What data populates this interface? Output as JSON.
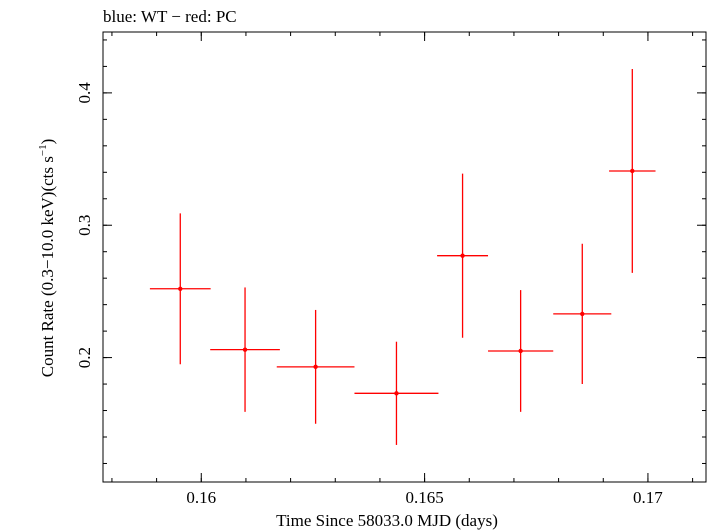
{
  "chart_data": {
    "type": "scatter",
    "title": "blue: WT − red: PC",
    "xlabel": "Time Since 58033.0 MJD (days)",
    "ylabel": "Count Rate (0.3−10.0 keV)(cts s",
    "ylabel_sup": "−1",
    "ylabel_close": ")",
    "xlim": [
      0.1578,
      0.1713
    ],
    "ylim": [
      0.106,
      0.446
    ],
    "x_ticks": [
      {
        "value": 0.16,
        "label": "0.16"
      },
      {
        "value": 0.165,
        "label": "0.165"
      },
      {
        "value": 0.17,
        "label": "0.17"
      }
    ],
    "y_ticks": [
      {
        "value": 0.2,
        "label": "0.2"
      },
      {
        "value": 0.3,
        "label": "0.3"
      },
      {
        "value": 0.4,
        "label": "0.4"
      }
    ],
    "x_minor_step": 0.001,
    "y_minor_step": 0.02,
    "grid": false,
    "colors": {
      "PC": "#ff0000",
      "axis": "#000000"
    },
    "series": [
      {
        "name": "PC",
        "color": "#ff0000",
        "points": [
          {
            "x": 0.15953,
            "xerr": 0.00068,
            "y": 0.252,
            "yerr": 0.057
          },
          {
            "x": 0.16098,
            "xerr": 0.00078,
            "y": 0.206,
            "yerr": 0.047
          },
          {
            "x": 0.16256,
            "xerr": 0.00087,
            "y": 0.193,
            "yerr": 0.043
          },
          {
            "x": 0.16437,
            "xerr": 0.00094,
            "y": 0.173,
            "yerr": 0.039
          },
          {
            "x": 0.16585,
            "xerr": 0.00057,
            "y": 0.277,
            "yerr": 0.062
          },
          {
            "x": 0.16715,
            "xerr": 0.00073,
            "y": 0.205,
            "yerr": 0.046
          },
          {
            "x": 0.16853,
            "xerr": 0.00065,
            "y": 0.233,
            "yerr": 0.053
          },
          {
            "x": 0.16965,
            "xerr": 0.00052,
            "y": 0.341,
            "yerr": 0.077
          }
        ]
      }
    ]
  }
}
